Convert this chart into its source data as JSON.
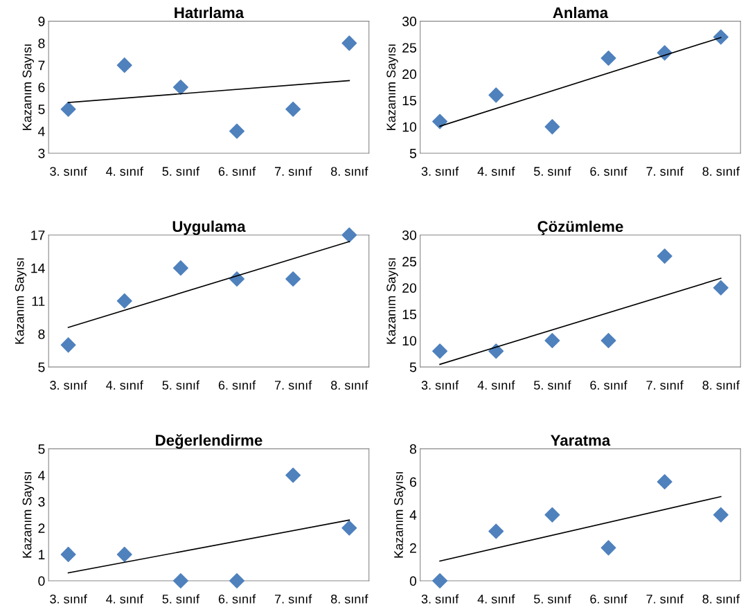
{
  "chart_data": [
    {
      "type": "scatter",
      "title": "Hatırlama",
      "ylabel": "Kazanım Sayısı",
      "categories": [
        "3. sınıf",
        "4. sınıf",
        "5. sınıf",
        "6. sınıf",
        "7. sınıf",
        "8. sınıf"
      ],
      "ylim": [
        3,
        9
      ],
      "yticks": [
        3,
        4,
        5,
        6,
        7,
        8,
        9
      ],
      "grid": false,
      "legend": false,
      "series": [
        {
          "marker": "diamond",
          "color": "#4f81bd",
          "values": [
            5,
            7,
            6,
            4,
            5,
            8
          ]
        },
        {
          "type": "line",
          "marker": "none",
          "color": "#000000",
          "x": [
            "3. sınıf",
            "8. sınıf"
          ],
          "values": [
            5.3,
            6.3
          ]
        }
      ]
    },
    {
      "type": "scatter",
      "title": "Anlama",
      "ylabel": "Kazanım Sayısı",
      "categories": [
        "3. sınıf",
        "4. sınıf",
        "5. sınıf",
        "6. sınıf",
        "7. sınıf",
        "8. sınıf"
      ],
      "ylim": [
        5,
        30
      ],
      "yticks": [
        5,
        10,
        15,
        20,
        25,
        30
      ],
      "grid": false,
      "legend": false,
      "series": [
        {
          "marker": "diamond",
          "color": "#4f81bd",
          "values": [
            11,
            16,
            10,
            23,
            24,
            27
          ]
        },
        {
          "type": "line",
          "marker": "none",
          "color": "#000000",
          "x": [
            "3. sınıf",
            "8. sınıf"
          ],
          "values": [
            10.1,
            26.9
          ]
        }
      ]
    },
    {
      "type": "scatter",
      "title": "Uygulama",
      "ylabel": "Kazanım Sayısı",
      "categories": [
        "3. sınıf",
        "4. sınıf",
        "5. sınıf",
        "6. sınıf",
        "7. sınıf",
        "8. sınıf"
      ],
      "ylim": [
        5,
        17
      ],
      "yticks": [
        5,
        8,
        11,
        14,
        17
      ],
      "grid": false,
      "legend": false,
      "series": [
        {
          "marker": "diamond",
          "color": "#4f81bd",
          "values": [
            7,
            11,
            14,
            13,
            13,
            17
          ]
        },
        {
          "type": "line",
          "marker": "none",
          "color": "#000000",
          "x": [
            "3. sınıf",
            "8. sınıf"
          ],
          "values": [
            8.6,
            16.4
          ]
        }
      ]
    },
    {
      "type": "scatter",
      "title": "Çözümleme",
      "ylabel": "Kazanım Sayısı",
      "categories": [
        "3. sınıf",
        "4. sınıf",
        "5. sınıf",
        "6. sınıf",
        "7. sınıf",
        "8. sınıf"
      ],
      "ylim": [
        5,
        30
      ],
      "yticks": [
        5,
        10,
        15,
        20,
        25,
        30
      ],
      "grid": false,
      "legend": false,
      "series": [
        {
          "marker": "diamond",
          "color": "#4f81bd",
          "values": [
            8,
            8,
            10,
            10,
            26,
            20
          ]
        },
        {
          "type": "line",
          "marker": "none",
          "color": "#000000",
          "x": [
            "3. sınıf",
            "8. sınıf"
          ],
          "values": [
            5.5,
            21.8
          ]
        }
      ]
    },
    {
      "type": "scatter",
      "title": "Değerlendirme",
      "ylabel": "Kazanım Sayısı",
      "categories": [
        "3. sınıf",
        "4. sınıf",
        "5. sınıf",
        "6. sınıf",
        "7. sınıf",
        "8. sınıf"
      ],
      "ylim": [
        0,
        5
      ],
      "yticks": [
        0,
        1,
        2,
        3,
        4,
        5
      ],
      "grid": false,
      "legend": false,
      "series": [
        {
          "marker": "diamond",
          "color": "#4f81bd",
          "values": [
            1,
            1,
            0,
            0,
            4,
            2
          ]
        },
        {
          "type": "line",
          "marker": "none",
          "color": "#000000",
          "x": [
            "3. sınıf",
            "8. sınıf"
          ],
          "values": [
            0.3,
            2.3
          ]
        }
      ]
    },
    {
      "type": "scatter",
      "title": "Yaratma",
      "ylabel": "Kazanım Sayısı",
      "categories": [
        "3. sınıf",
        "4. sınıf",
        "5. sınıf",
        "6. sınıf",
        "7. sınıf",
        "8. sınıf"
      ],
      "ylim": [
        0,
        8
      ],
      "yticks": [
        0,
        2,
        4,
        6,
        8
      ],
      "grid": false,
      "legend": false,
      "series": [
        {
          "marker": "diamond",
          "color": "#4f81bd",
          "values": [
            0,
            3,
            4,
            2,
            6,
            4
          ]
        },
        {
          "type": "line",
          "marker": "none",
          "color": "#000000",
          "x": [
            "3. sınıf",
            "8. sınıf"
          ],
          "values": [
            1.2,
            5.1
          ]
        }
      ]
    }
  ]
}
